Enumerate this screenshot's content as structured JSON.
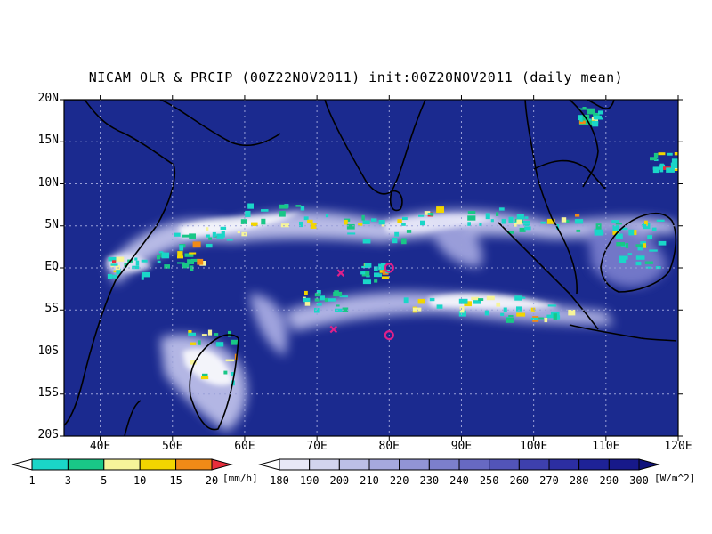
{
  "title": "NICAM OLR & PRCIP (00Z22NOV2011) init:00Z20NOV2011 (daily_mean)",
  "map": {
    "lon_range": [
      35,
      120
    ],
    "lat_range": [
      -20,
      20
    ],
    "grid": true,
    "lat_ticks": [
      {
        "value": 20,
        "label": "20N"
      },
      {
        "value": 15,
        "label": "15N"
      },
      {
        "value": 10,
        "label": "10N"
      },
      {
        "value": 5,
        "label": "5N"
      },
      {
        "value": 0,
        "label": "EQ"
      },
      {
        "value": -5,
        "label": "5S"
      },
      {
        "value": -10,
        "label": "10S"
      },
      {
        "value": -15,
        "label": "15S"
      },
      {
        "value": -20,
        "label": "20S"
      }
    ],
    "lon_ticks": [
      {
        "value": 40,
        "label": "40E"
      },
      {
        "value": 50,
        "label": "50E"
      },
      {
        "value": 60,
        "label": "60E"
      },
      {
        "value": 70,
        "label": "70E"
      },
      {
        "value": 80,
        "label": "80E"
      },
      {
        "value": 90,
        "label": "90E"
      },
      {
        "value": 100,
        "label": "100E"
      },
      {
        "value": 110,
        "label": "110E"
      },
      {
        "value": 120,
        "label": "120E"
      }
    ],
    "markers": [
      {
        "type": "x",
        "lon": 73.3,
        "lat": -0.6,
        "color": "#e0208a"
      },
      {
        "type": "x",
        "lon": 72.3,
        "lat": -7.3,
        "color": "#e0208a"
      },
      {
        "type": "circle",
        "lon": 80.0,
        "lat": 0.0,
        "color": "#e0208a"
      },
      {
        "type": "circle",
        "lon": 80.0,
        "lat": -8.0,
        "color": "#e0208a"
      }
    ],
    "background_color": "#1b2a8f"
  },
  "precip_colorbar": {
    "unit": "[mm/h]",
    "labels": [
      "1",
      "3",
      "5",
      "10",
      "15",
      "20"
    ],
    "colors": [
      "#ffffff",
      "#1ad6c8",
      "#19c787",
      "#f6f49a",
      "#f2d500",
      "#f08a17",
      "#e82e3c"
    ]
  },
  "olr_colorbar": {
    "unit": "[W/m^2]",
    "labels": [
      "180",
      "190",
      "200",
      "210",
      "220",
      "230",
      "240",
      "250",
      "260",
      "270",
      "280",
      "290",
      "300"
    ],
    "colors": [
      "#ffffff",
      "#e8e8f6",
      "#d2d4ee",
      "#bcbfe6",
      "#a6a9de",
      "#9194d5",
      "#7c7fcc",
      "#6769c2",
      "#5254b8",
      "#3e40ad",
      "#2c2ea2",
      "#1e2296",
      "#17198a",
      "#10137c"
    ]
  }
}
